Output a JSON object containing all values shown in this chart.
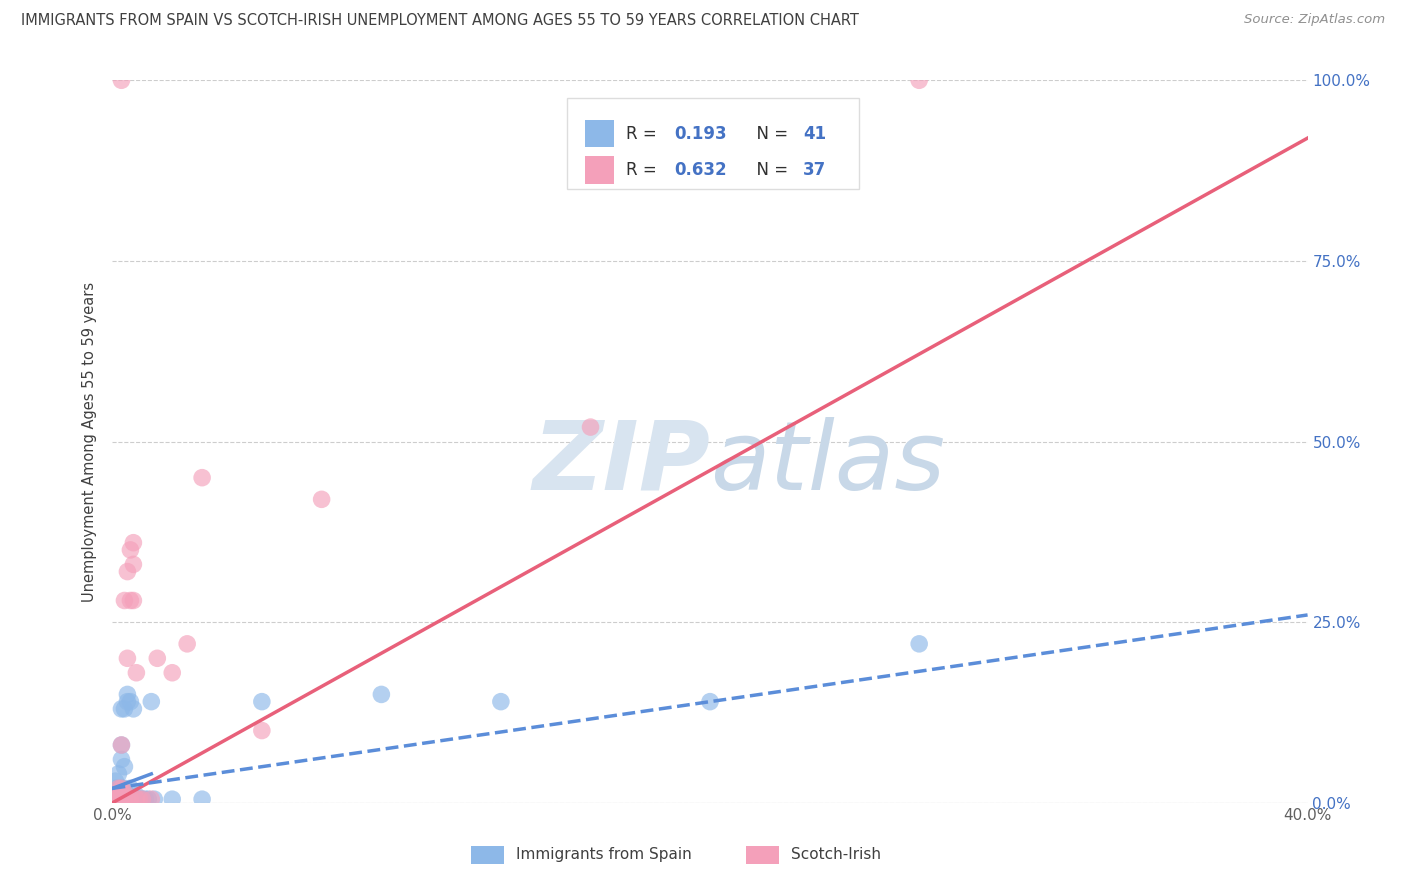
{
  "title": "IMMIGRANTS FROM SPAIN VS SCOTCH-IRISH UNEMPLOYMENT AMONG AGES 55 TO 59 YEARS CORRELATION CHART",
  "source": "Source: ZipAtlas.com",
  "ylabel": "Unemployment Among Ages 55 to 59 years",
  "xlim": [
    0.0,
    0.4
  ],
  "ylim": [
    0.0,
    1.0
  ],
  "xticks": [
    0.0,
    0.05,
    0.1,
    0.15,
    0.2,
    0.25,
    0.3,
    0.35,
    0.4
  ],
  "xtick_labels": [
    "0.0%",
    "",
    "",
    "",
    "",
    "",
    "",
    "",
    "40.0%"
  ],
  "yticks": [
    0.0,
    0.25,
    0.5,
    0.75,
    1.0
  ],
  "ytick_labels_right": [
    "0.0%",
    "25.0%",
    "50.0%",
    "75.0%",
    "100.0%"
  ],
  "blue_color": "#8DB8E8",
  "pink_color": "#F4A0BA",
  "blue_line_color": "#5B8DD9",
  "pink_line_color": "#E8607A",
  "title_color": "#404040",
  "source_color": "#909090",
  "label_color": "#404040",
  "right_tick_color": "#4472C4",
  "watermark_color": "#D8E4F0",
  "blue_trend": [
    0.0,
    0.4,
    0.02,
    0.26
  ],
  "pink_trend": [
    0.0,
    0.4,
    0.0,
    0.92
  ],
  "blue_scatter": [
    [
      0.001,
      0.005
    ],
    [
      0.001,
      0.01
    ],
    [
      0.001,
      0.02
    ],
    [
      0.001,
      0.03
    ],
    [
      0.002,
      0.005
    ],
    [
      0.002,
      0.01
    ],
    [
      0.002,
      0.015
    ],
    [
      0.002,
      0.02
    ],
    [
      0.002,
      0.04
    ],
    [
      0.003,
      0.005
    ],
    [
      0.003,
      0.01
    ],
    [
      0.003,
      0.02
    ],
    [
      0.003,
      0.06
    ],
    [
      0.003,
      0.08
    ],
    [
      0.003,
      0.13
    ],
    [
      0.004,
      0.01
    ],
    [
      0.004,
      0.02
    ],
    [
      0.004,
      0.05
    ],
    [
      0.004,
      0.13
    ],
    [
      0.005,
      0.01
    ],
    [
      0.005,
      0.14
    ],
    [
      0.005,
      0.15
    ],
    [
      0.006,
      0.02
    ],
    [
      0.006,
      0.14
    ],
    [
      0.007,
      0.005
    ],
    [
      0.007,
      0.13
    ],
    [
      0.008,
      0.005
    ],
    [
      0.008,
      0.01
    ],
    [
      0.009,
      0.005
    ],
    [
      0.01,
      0.005
    ],
    [
      0.011,
      0.005
    ],
    [
      0.012,
      0.005
    ],
    [
      0.013,
      0.14
    ],
    [
      0.014,
      0.005
    ],
    [
      0.02,
      0.005
    ],
    [
      0.03,
      0.005
    ],
    [
      0.05,
      0.14
    ],
    [
      0.09,
      0.15
    ],
    [
      0.13,
      0.14
    ],
    [
      0.2,
      0.14
    ],
    [
      0.27,
      0.22
    ]
  ],
  "pink_scatter": [
    [
      0.001,
      0.005
    ],
    [
      0.001,
      0.01
    ],
    [
      0.002,
      0.005
    ],
    [
      0.002,
      0.01
    ],
    [
      0.002,
      0.02
    ],
    [
      0.003,
      0.005
    ],
    [
      0.003,
      0.01
    ],
    [
      0.003,
      0.015
    ],
    [
      0.003,
      0.02
    ],
    [
      0.003,
      0.08
    ],
    [
      0.003,
      1.0
    ],
    [
      0.004,
      0.005
    ],
    [
      0.004,
      0.01
    ],
    [
      0.004,
      0.015
    ],
    [
      0.004,
      0.28
    ],
    [
      0.005,
      0.005
    ],
    [
      0.005,
      0.2
    ],
    [
      0.005,
      0.32
    ],
    [
      0.006,
      0.005
    ],
    [
      0.006,
      0.28
    ],
    [
      0.006,
      0.35
    ],
    [
      0.007,
      0.28
    ],
    [
      0.007,
      0.33
    ],
    [
      0.007,
      0.36
    ],
    [
      0.008,
      0.005
    ],
    [
      0.008,
      0.18
    ],
    [
      0.009,
      0.005
    ],
    [
      0.01,
      0.005
    ],
    [
      0.013,
      0.005
    ],
    [
      0.015,
      0.2
    ],
    [
      0.02,
      0.18
    ],
    [
      0.025,
      0.22
    ],
    [
      0.03,
      0.45
    ],
    [
      0.05,
      0.1
    ],
    [
      0.07,
      0.42
    ],
    [
      0.16,
      0.52
    ],
    [
      0.27,
      1.0
    ]
  ],
  "figsize": [
    14.06,
    8.92
  ],
  "dpi": 100
}
